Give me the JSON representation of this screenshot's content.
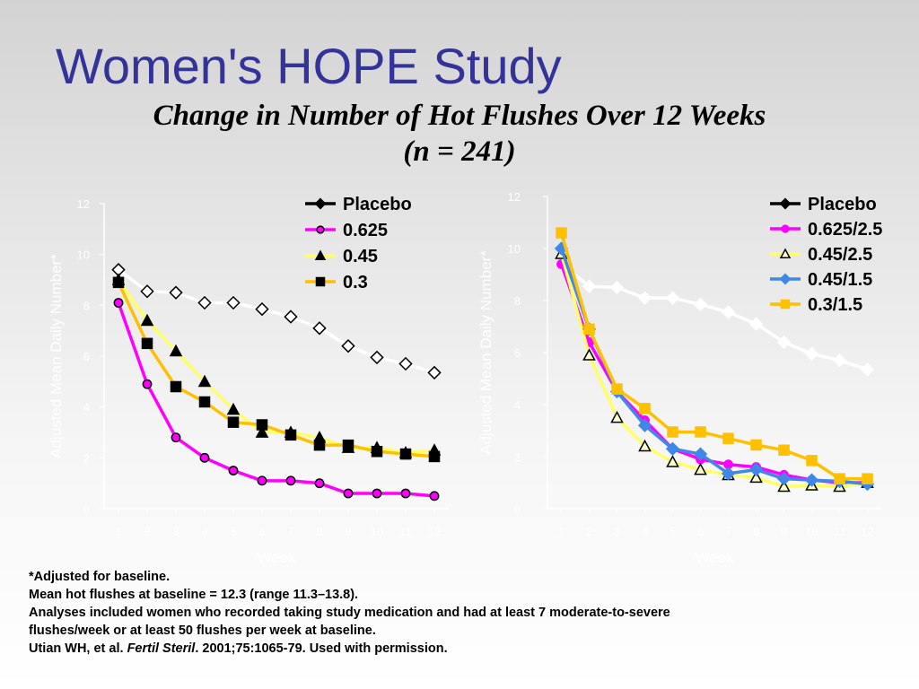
{
  "slide": {
    "title": "Women's HOPE Study",
    "subtitle_line1": "Change in Number of Hot Flushes Over 12 Weeks",
    "subtitle_line2": "(n = 241)"
  },
  "footnotes": {
    "line1": "*Adjusted for baseline.",
    "line2": "Mean hot flushes at baseline = 12.3 (range 11.3–13.8).",
    "line3": "Analyses included women who recorded taking study medication and had at least 7 moderate-to-severe",
    "line4": "flushes/week or at least 50 flushes per week at baseline.",
    "citation_prefix": "Utian WH, et al. ",
    "citation_journal": "Fertil Steril",
    "citation_suffix": ". 2001;75:1065-79. Used with permission."
  },
  "colors": {
    "title": "#33339a",
    "placebo": "#ffffff",
    "high_dose": "#ff00ff",
    "mid_dose": "#ffff66",
    "low_dose": "#ffc000",
    "combo_blue": "#3f88e8",
    "axis_text": "#ffffff"
  },
  "chart_data": [
    {
      "type": "line",
      "xlabel": "Week",
      "ylabel": "Adjusted Mean Daily Number*",
      "x": [
        1,
        2,
        3,
        4,
        5,
        6,
        7,
        8,
        9,
        10,
        11,
        12
      ],
      "xlim": [
        0.5,
        12.5
      ],
      "ylim": [
        0,
        12
      ],
      "yticks": [
        0,
        2,
        4,
        6,
        8,
        10,
        12
      ],
      "grid": false,
      "legend_position": "top-right",
      "series": [
        {
          "name": "Placebo",
          "color": "#ffffff",
          "legend_marker": "diamond-filled",
          "marker": "diamond-open",
          "marker_fill": "#ffffff",
          "marker_stroke": "#000000",
          "values": [
            9.4,
            8.55,
            8.5,
            8.1,
            8.1,
            7.85,
            7.55,
            7.1,
            6.4,
            5.95,
            5.7,
            5.35
          ]
        },
        {
          "name": "0.625",
          "color": "#ff00ff",
          "marker": "circle",
          "marker_fill": "#ff00ff",
          "marker_stroke": "#000000",
          "values": [
            8.1,
            4.9,
            2.8,
            2.0,
            1.5,
            1.1,
            1.1,
            1.0,
            0.6,
            0.6,
            0.6,
            0.5
          ]
        },
        {
          "name": "0.45",
          "color": "#ffff66",
          "marker": "triangle",
          "marker_fill": "#000000",
          "marker_stroke": "#000000",
          "values": [
            9.0,
            7.4,
            6.2,
            5.0,
            3.9,
            3.0,
            3.0,
            2.8,
            2.4,
            2.4,
            2.2,
            2.3
          ]
        },
        {
          "name": "0.3",
          "color": "#ffc000",
          "marker": "square",
          "marker_fill": "#000000",
          "marker_stroke": "#000000",
          "values": [
            8.9,
            6.5,
            4.8,
            4.2,
            3.4,
            3.3,
            2.9,
            2.5,
            2.5,
            2.25,
            2.15,
            2.05
          ]
        }
      ]
    },
    {
      "type": "line",
      "xlabel": "Week",
      "ylabel": "Adjusted Mean Daily Number*",
      "x": [
        1,
        2,
        3,
        4,
        5,
        6,
        7,
        8,
        9,
        10,
        11,
        12
      ],
      "xlim": [
        0.5,
        12.5
      ],
      "ylim": [
        0,
        12
      ],
      "yticks": [
        0,
        2,
        4,
        6,
        8,
        10,
        12
      ],
      "grid": false,
      "legend_position": "top-right",
      "series": [
        {
          "name": "Placebo",
          "color": "#ffffff",
          "legend_marker": "diamond-filled",
          "marker": "diamond-filled",
          "marker_fill": "#ffffff",
          "marker_stroke": "#ffffff",
          "values": [
            9.4,
            8.55,
            8.5,
            8.1,
            8.1,
            7.85,
            7.55,
            7.1,
            6.4,
            5.95,
            5.7,
            5.35
          ]
        },
        {
          "name": "0.625/2.5",
          "color": "#ff00ff",
          "marker": "circle",
          "marker_fill": "#ff00ff",
          "marker_stroke": "#ff00ff",
          "values": [
            9.4,
            6.4,
            4.5,
            3.4,
            2.3,
            1.9,
            1.7,
            1.6,
            1.3,
            1.1,
            1.0,
            1.0
          ]
        },
        {
          "name": "0.45/2.5",
          "color": "#ffff66",
          "marker": "triangle-open",
          "marker_fill": "#ffffcc",
          "marker_stroke": "#000000",
          "values": [
            9.8,
            5.9,
            3.5,
            2.4,
            1.8,
            1.5,
            1.3,
            1.2,
            0.85,
            0.9,
            0.85,
            1.0
          ]
        },
        {
          "name": "0.45/1.5",
          "color": "#3f88e8",
          "marker": "diamond-filled",
          "marker_fill": "#3f88e8",
          "marker_stroke": "#3f88e8",
          "values": [
            10.0,
            6.9,
            4.5,
            3.2,
            2.3,
            2.1,
            1.35,
            1.5,
            1.15,
            1.1,
            1.05,
            0.95
          ]
        },
        {
          "name": "0.3/1.5",
          "color": "#ffc000",
          "marker": "square",
          "marker_fill": "#ffc000",
          "marker_stroke": "#ffc000",
          "values": [
            10.6,
            6.9,
            4.6,
            3.85,
            2.95,
            2.95,
            2.7,
            2.45,
            2.25,
            1.85,
            1.15,
            1.15
          ]
        }
      ]
    }
  ]
}
